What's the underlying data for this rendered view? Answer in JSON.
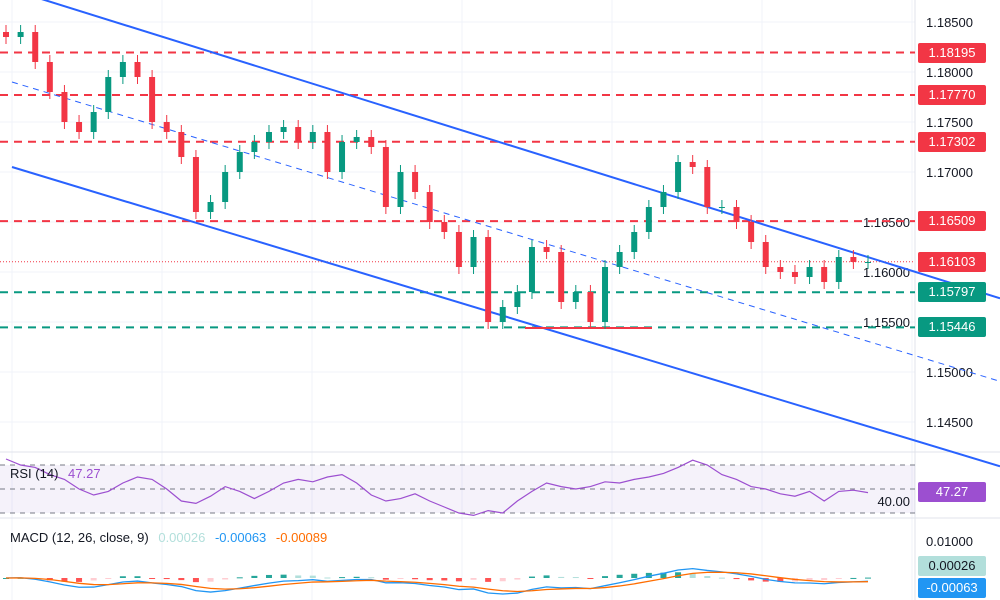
{
  "chart_data": {
    "type": "candlestick",
    "y_axis": {
      "range": [
        1.1395,
        1.1872
      ],
      "ticks": [
        "1.18500",
        "1.18000",
        "1.17500",
        "1.17000",
        "1.16500",
        "1.16000",
        "1.15500",
        "1.15000",
        "1.14500"
      ]
    },
    "grid": true,
    "closes": [
      1.1835,
      1.184,
      1.181,
      1.178,
      1.175,
      1.174,
      1.176,
      1.1795,
      1.181,
      1.1795,
      1.175,
      1.174,
      1.1715,
      1.166,
      1.167,
      1.17,
      1.172,
      1.173,
      1.174,
      1.1745,
      1.173,
      1.174,
      1.17,
      1.173,
      1.1735,
      1.1725,
      1.1665,
      1.17,
      1.168,
      1.165,
      1.164,
      1.1605,
      1.1635,
      1.155,
      1.1565,
      1.158,
      1.1625,
      1.162,
      1.157,
      1.158,
      1.155,
      1.1605,
      1.162,
      1.164,
      1.1665,
      1.168,
      1.171,
      1.1705,
      1.1665,
      1.1665,
      1.165,
      1.163,
      1.1605,
      1.16,
      1.1595,
      1.1605,
      1.159,
      1.1615,
      1.161,
      1.161
    ],
    "price_levels": [
      {
        "value": "1.18195",
        "color": "#f23645"
      },
      {
        "value": "1.17770",
        "color": "#f23645"
      },
      {
        "value": "1.17302",
        "color": "#f23645"
      },
      {
        "value": "1.16509",
        "color": "#f23645"
      },
      {
        "value": "1.15797",
        "color": "#089981"
      },
      {
        "value": "1.15446",
        "color": "#089981"
      }
    ],
    "last_price": {
      "value": "1.16103",
      "color": "#f23645"
    },
    "trendlines": [
      {
        "style": "solid",
        "from": 1.1875,
        "to": 1.16
      },
      {
        "style": "dashed",
        "from": 1.179,
        "to": 1.1517
      },
      {
        "style": "solid",
        "from": 1.1705,
        "to": 1.1432
      }
    ],
    "support_line": {
      "value": 1.1544,
      "color": "#f23645"
    },
    "rsi": {
      "label": "RSI (14)",
      "value": "47.27",
      "color": "#9c4fd0",
      "ticks": [
        "40.00"
      ],
      "values": [
        75,
        70,
        68,
        62,
        58,
        50,
        45,
        48,
        55,
        60,
        58,
        50,
        40,
        38,
        44,
        52,
        48,
        42,
        48,
        55,
        58,
        56,
        60,
        62,
        55,
        45,
        40,
        42,
        46,
        40,
        35,
        30,
        28,
        32,
        30,
        40,
        48,
        55,
        52,
        50,
        52,
        56,
        55,
        58,
        60,
        63,
        68,
        74,
        70,
        62,
        58,
        52,
        50,
        46,
        44,
        48,
        40,
        48,
        49,
        47
      ]
    },
    "macd": {
      "label": "MACD (12, 26, close, 9)",
      "histogram": "0.00026",
      "macd": "-0.00063",
      "signal": "-0.00089",
      "colors": {
        "histogram": "#b2dfdb",
        "macd": "#2196f3",
        "signal": "#ff6d00"
      },
      "ticks": [
        "0.01000"
      ]
    },
    "colors": {
      "up": "#089981",
      "down": "#f23645",
      "trend": "#2962ff"
    }
  }
}
